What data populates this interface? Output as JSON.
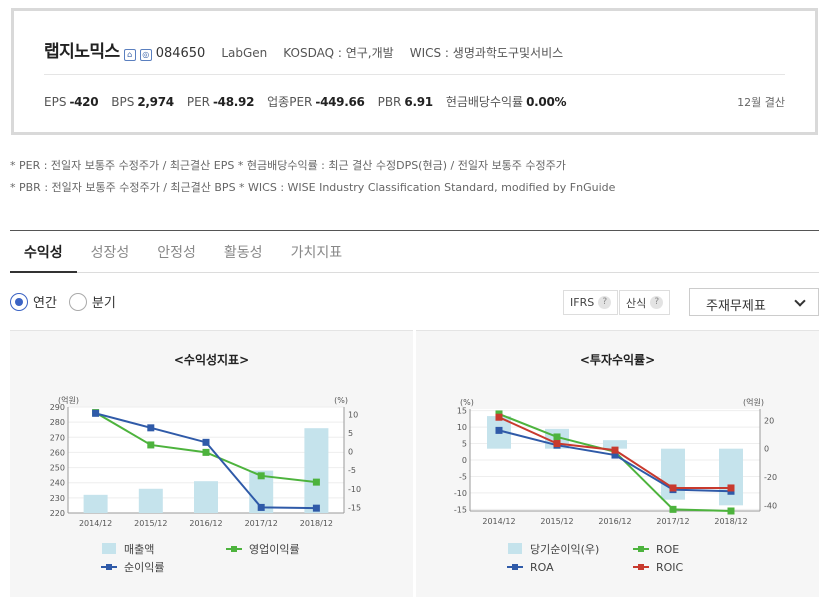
{
  "company": {
    "name": "랩지노믹스",
    "ticker": "084650",
    "eng_name": "LabGen",
    "market": "KOSDAQ : 연구,개발",
    "wics": "WICS : 생명과학도구및서비스"
  },
  "metrics": [
    {
      "label": "EPS",
      "value": "-420"
    },
    {
      "label": "BPS",
      "value": "2,974"
    },
    {
      "label": "PER",
      "value": "-48.92"
    },
    {
      "label": "업종PER",
      "value": "-449.66"
    },
    {
      "label": "PBR",
      "value": "6.91"
    },
    {
      "label": "현금배당수익률",
      "value": "0.00%"
    }
  ],
  "settlement": "12월 결산",
  "notes": [
    "* PER : 전일자 보통주 수정주가 / 최근결산 EPS * 현금배당수익률 : 최근 결산 수정DPS(현금) / 전일자 보통주 수정주가",
    "* PBR : 전일자 보통주 수정주가 / 최근결산 BPS * WICS : WISE Industry Classification Standard, modified by FnGuide"
  ],
  "tabs": [
    "수익성",
    "성장성",
    "안정성",
    "활동성",
    "가치지표"
  ],
  "period": {
    "annual": "연간",
    "quarter": "분기"
  },
  "chips": {
    "ifrs": "IFRS",
    "calc": "산식",
    "help": "?"
  },
  "select_value": "주재무제표",
  "chart_data": [
    {
      "type": "bar+line",
      "title": "<수익성지표>",
      "categories": [
        "2014/12",
        "2015/12",
        "2016/12",
        "2017/12",
        "2018/12"
      ],
      "left_axis": {
        "label": "(억원)",
        "ylim": [
          220,
          290
        ],
        "ticks": [
          220,
          230,
          240,
          250,
          260,
          270,
          280,
          290
        ]
      },
      "right_axis": {
        "label": "(%)",
        "ylim": [
          -16.5,
          12
        ],
        "ticks": [
          -15,
          -10,
          -5,
          0,
          5,
          10
        ]
      },
      "series": [
        {
          "name": "매출액",
          "kind": "bar",
          "axis": "left",
          "color": "#c5e3ec",
          "values": [
            232,
            236,
            241,
            248,
            276
          ]
        },
        {
          "name": "영업이익률",
          "kind": "line",
          "axis": "right",
          "color": "#4db33d",
          "values": [
            10.5,
            1.8,
            -0.2,
            -6.5,
            -8.2
          ]
        },
        {
          "name": "순이익률",
          "kind": "line",
          "axis": "right",
          "color": "#2f5aa8",
          "values": [
            10.3,
            6.4,
            2.5,
            -15.0,
            -15.2
          ]
        }
      ]
    },
    {
      "type": "bar+line",
      "title": "<투자수익률>",
      "categories": [
        "2014/12",
        "2015/12",
        "2016/12",
        "2017/12",
        "2018/12"
      ],
      "left_axis": {
        "label": "(%)",
        "ylim": [
          -15.5,
          15.5
        ],
        "ticks": [
          -15,
          -10,
          -5,
          0,
          5,
          10,
          15
        ]
      },
      "right_axis": {
        "label": "(억원)",
        "ylim": [
          -44,
          28
        ],
        "ticks": [
          -40,
          -20,
          0,
          20
        ]
      },
      "series": [
        {
          "name": "당기순이익(우)",
          "kind": "bar",
          "axis": "right",
          "color": "#c5e3ec",
          "values": [
            23,
            14,
            6,
            -36,
            -40
          ]
        },
        {
          "name": "ROE",
          "kind": "line",
          "axis": "left",
          "color": "#4db33d",
          "values": [
            14.0,
            7.0,
            2.5,
            -15.0,
            -15.5
          ]
        },
        {
          "name": "ROA",
          "kind": "line",
          "axis": "left",
          "color": "#2f5aa8",
          "values": [
            9.0,
            4.5,
            1.5,
            -9.0,
            -9.5
          ]
        },
        {
          "name": "ROIC",
          "kind": "line",
          "axis": "left",
          "color": "#c83a2e",
          "values": [
            13.0,
            5.0,
            3.0,
            -8.5,
            -8.5
          ]
        }
      ]
    }
  ]
}
